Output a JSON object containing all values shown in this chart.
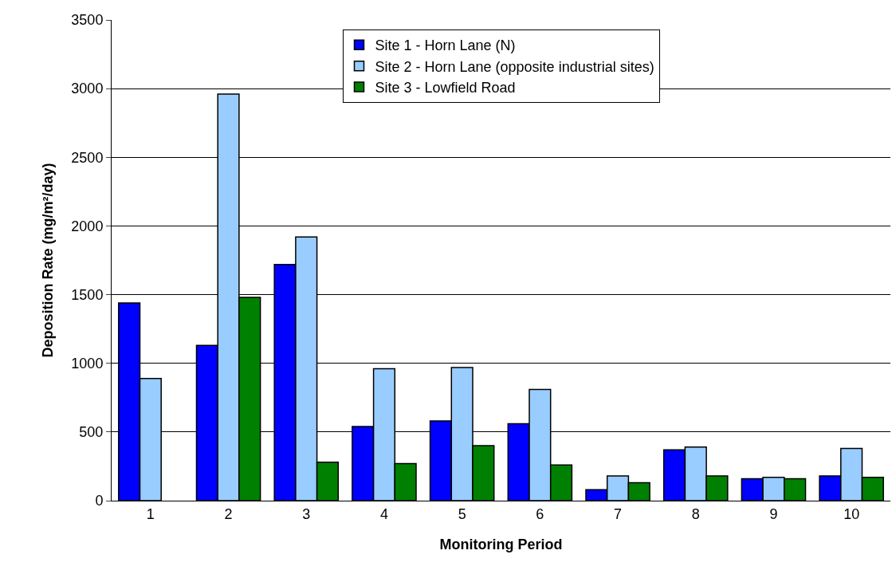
{
  "chart_data": {
    "type": "bar",
    "xlabel": "Monitoring Period",
    "ylabel": "Deposition Rate (mg/m²/day)",
    "categories": [
      "1",
      "2",
      "3",
      "4",
      "5",
      "6",
      "7",
      "8",
      "9",
      "10"
    ],
    "series": [
      {
        "name": "Site 1 - Horn Lane (N)",
        "color": "#0000ff",
        "values": [
          1440,
          1130,
          1720,
          540,
          580,
          560,
          80,
          370,
          160,
          180
        ]
      },
      {
        "name": "Site 2 - Horn Lane (opposite industrial sites)",
        "color": "#99ccff",
        "values": [
          890,
          2960,
          1920,
          960,
          970,
          810,
          180,
          390,
          170,
          380
        ]
      },
      {
        "name": "Site 3 - Lowfield Road",
        "color": "#008000",
        "values": [
          null,
          1480,
          280,
          270,
          400,
          260,
          130,
          180,
          160,
          170
        ]
      }
    ],
    "ylim": [
      0,
      3500
    ],
    "yticks": [
      0,
      500,
      1000,
      1500,
      2000,
      2500,
      3000,
      3500
    ],
    "grid": "y",
    "legend": "top"
  }
}
